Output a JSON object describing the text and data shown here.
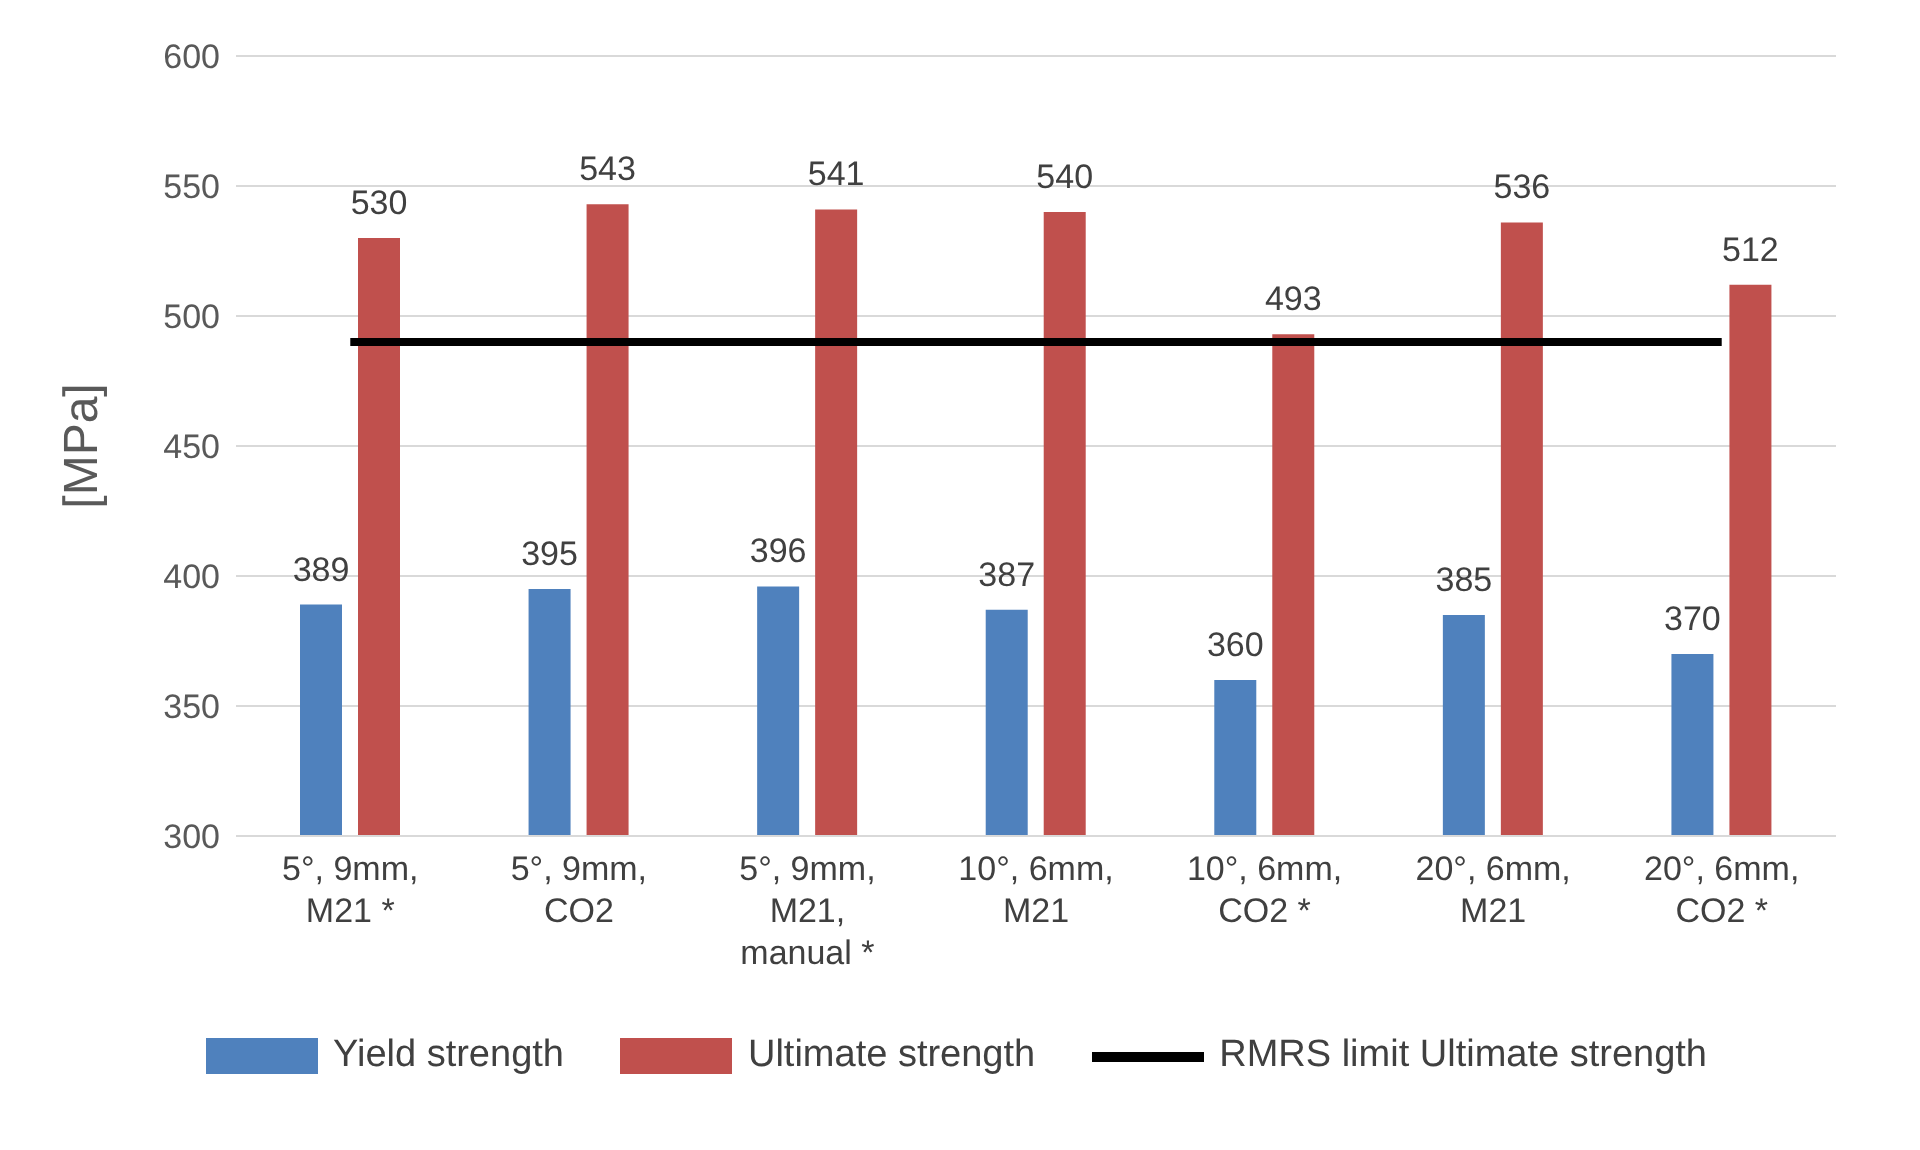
{
  "chart_data": {
    "type": "bar",
    "ylabel": "[MPa]",
    "categories": [
      "5°, 9mm, M21 *",
      "5°, 9mm, CO2",
      "5°, 9mm, M21, manual *",
      "10°, 6mm, M21",
      "10°, 6mm, CO2 *",
      "20°, 6mm, M21",
      "20°, 6mm, CO2 *"
    ],
    "series": [
      {
        "name": "Yield strength",
        "color": "#4f81bd",
        "values": [
          389,
          395,
          396,
          387,
          360,
          385,
          370
        ]
      },
      {
        "name": "Ultimate strength",
        "color": "#c0504d",
        "values": [
          530,
          543,
          541,
          540,
          493,
          536,
          512
        ]
      }
    ],
    "ylim": [
      300,
      600
    ],
    "yticks": [
      300,
      350,
      400,
      450,
      500,
      550,
      600
    ],
    "grid": "y",
    "legend": "bottom",
    "data_labels": true,
    "ref_lines": [
      {
        "axis": "y",
        "value": 490,
        "label": "RMRS limit Ultimate strength",
        "color": "#000000"
      }
    ]
  }
}
